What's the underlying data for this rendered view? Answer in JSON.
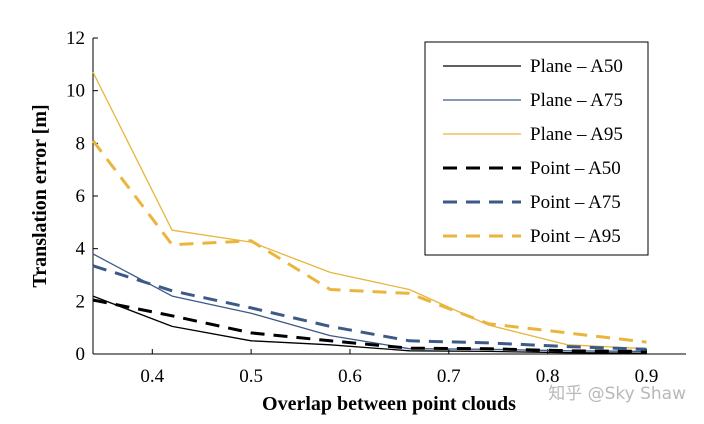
{
  "chart_data": {
    "type": "line",
    "xlabel": "Overlap between point clouds",
    "ylabel": "Translation error [m]",
    "xlim": [
      0.34,
      0.94
    ],
    "ylim": [
      0,
      12
    ],
    "xticks": [
      0.4,
      0.5,
      0.6,
      0.7,
      0.8,
      0.9
    ],
    "yticks": [
      0,
      2,
      4,
      6,
      8,
      10,
      12
    ],
    "xtick_labels": [
      "0.4",
      "0.5",
      "0.6",
      "0.7",
      "0.8",
      "0.9"
    ],
    "ytick_labels": [
      "0",
      "2",
      "4",
      "6",
      "8",
      "10",
      "12"
    ],
    "grid": false,
    "legend_position": "top-right",
    "series": [
      {
        "name": "Plane – A50",
        "color": "#000000",
        "style": "solid",
        "x": [
          0.34,
          0.42,
          0.5,
          0.58,
          0.66,
          0.74,
          0.82,
          0.9
        ],
        "y": [
          2.2,
          1.05,
          0.5,
          0.35,
          0.12,
          0.1,
          0.05,
          0.03
        ]
      },
      {
        "name": "Plane – A75",
        "color": "#3c5a87",
        "style": "solid",
        "x": [
          0.34,
          0.42,
          0.5,
          0.58,
          0.66,
          0.74,
          0.82,
          0.9
        ],
        "y": [
          3.8,
          2.2,
          1.55,
          0.7,
          0.2,
          0.18,
          0.12,
          0.1
        ]
      },
      {
        "name": "Plane – A95",
        "color": "#eab53d",
        "style": "solid",
        "x": [
          0.34,
          0.42,
          0.5,
          0.58,
          0.66,
          0.74,
          0.82,
          0.9
        ],
        "y": [
          10.7,
          4.7,
          4.25,
          3.1,
          2.45,
          1.1,
          0.35,
          0.2
        ]
      },
      {
        "name": "Point – A50",
        "color": "#000000",
        "style": "dashed",
        "x": [
          0.34,
          0.42,
          0.5,
          0.58,
          0.66,
          0.74,
          0.82,
          0.9
        ],
        "y": [
          2.05,
          1.45,
          0.8,
          0.5,
          0.22,
          0.2,
          0.12,
          0.1
        ]
      },
      {
        "name": "Point – A75",
        "color": "#3c5a87",
        "style": "dashed",
        "x": [
          0.34,
          0.42,
          0.5,
          0.58,
          0.66,
          0.74,
          0.82,
          0.9
        ],
        "y": [
          3.35,
          2.4,
          1.75,
          1.05,
          0.5,
          0.42,
          0.28,
          0.18
        ]
      },
      {
        "name": "Point – A95",
        "color": "#eab53d",
        "style": "dashed",
        "x": [
          0.34,
          0.42,
          0.5,
          0.58,
          0.66,
          0.74,
          0.82,
          0.9
        ],
        "y": [
          8.1,
          4.15,
          4.3,
          2.45,
          2.3,
          1.15,
          0.8,
          0.45
        ]
      }
    ]
  },
  "watermark": "知乎 @Sky Shaw"
}
